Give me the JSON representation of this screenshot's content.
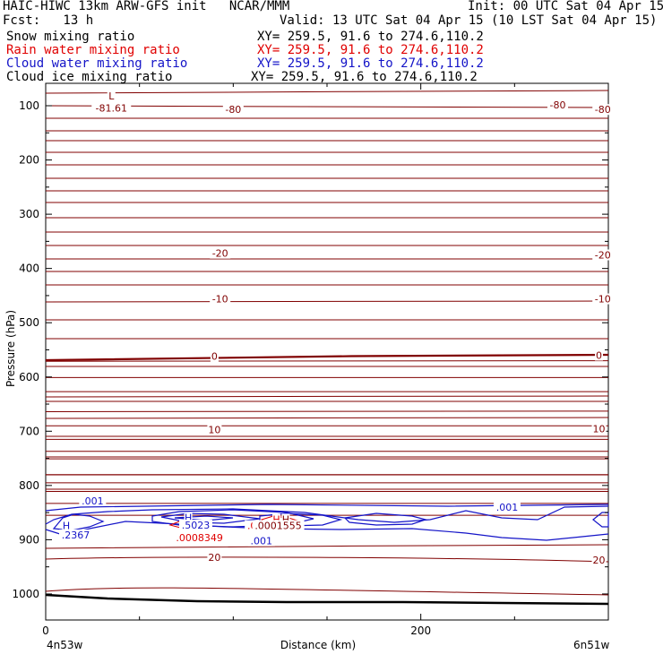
{
  "header": {
    "title": "HAIC-HIWC 13km ARW-GFS init   NCAR/MMM",
    "init": "Init: 00 UTC Sat 04 Apr 15",
    "fcst": "Fcst:   13 h",
    "valid": "Valid: 13 UTC Sat 04 Apr 15 (10 LST Sat 04 Apr 15)"
  },
  "fields": [
    {
      "name": "Snow mixing ratio",
      "xy": "XY= 259.5, 91.6 to 274.6,110.2",
      "color": "#000000"
    },
    {
      "name": "Rain water mixing ratio",
      "xy": "XY= 259.5, 91.6 to 274.6,110.2",
      "color": "#e00000"
    },
    {
      "name": "Cloud water mixing ratio",
      "xy": "XY= 259.5, 91.6 to 274.6,110.2",
      "color": "#1414c8"
    },
    {
      "name": "Cloud ice mixing ratio",
      "xy": "XY= 259.5, 91.6 to 274.6,110.2",
      "color": "#000000"
    }
  ],
  "chart_data": {
    "type": "contour",
    "xlabel": "Distance (km)",
    "ylabel": "Pressure (hPa)",
    "xlim": [
      0,
      300
    ],
    "ylim": [
      1025,
      80
    ],
    "x_ticks": [
      0,
      200
    ],
    "y_ticks": [
      100,
      200,
      300,
      400,
      500,
      600,
      700,
      800,
      900,
      1000
    ],
    "x_start_label": "4n53w",
    "x_end_label": "6n51w",
    "temperature_contour_color": "#800000",
    "temperature_contour_labels": [
      {
        "text": "-80",
        "x": 100,
        "p": 107
      },
      {
        "text": "-80",
        "x": 273,
        "p": 98
      },
      {
        "text": "-80",
        "x": 297,
        "p": 107
      },
      {
        "text": "-20",
        "x": 93,
        "p": 372
      },
      {
        "text": "-20",
        "x": 297,
        "p": 375
      },
      {
        "text": "-10",
        "x": 93,
        "p": 456
      },
      {
        "text": "-10",
        "x": 297,
        "p": 456
      },
      {
        "text": "0",
        "x": 90,
        "p": 562
      },
      {
        "text": "0",
        "x": 295,
        "p": 560
      },
      {
        "text": "10",
        "x": 90,
        "p": 697
      },
      {
        "text": "10",
        "x": 295,
        "p": 695
      },
      {
        "text": "20",
        "x": 90,
        "p": 932
      },
      {
        "text": "20",
        "x": 295,
        "p": 937
      }
    ],
    "min_marker": {
      "text": "L",
      "value": "-81.61",
      "x": 35,
      "p": 100
    },
    "cloud_water_labels": [
      {
        "text": ".001",
        "x": 25,
        "p": 828
      },
      {
        "text": ".001",
        "x": 246,
        "p": 840
      },
      {
        "text": ".001",
        "x": 115,
        "p": 902
      },
      {
        "text": "H",
        "x": 11,
        "p": 874
      },
      {
        "text": ".2367",
        "x": 16,
        "p": 891
      },
      {
        "text": "H",
        "x": 76,
        "p": 859
      },
      {
        "text": ".5023",
        "x": 80,
        "p": 873
      }
    ],
    "rain_water_labels": [
      {
        "text": ".0008349",
        "x": 82,
        "p": 896
      },
      {
        "text": "H",
        "x": 123,
        "p": 862
      },
      {
        "text": ".0008513",
        "x": 120,
        "p": 874
      }
    ],
    "snow_ice_labels": [
      {
        "text": "H",
        "x": 128,
        "p": 862
      },
      {
        "text": ".0001555",
        "x": 124,
        "p": 874
      }
    ]
  }
}
